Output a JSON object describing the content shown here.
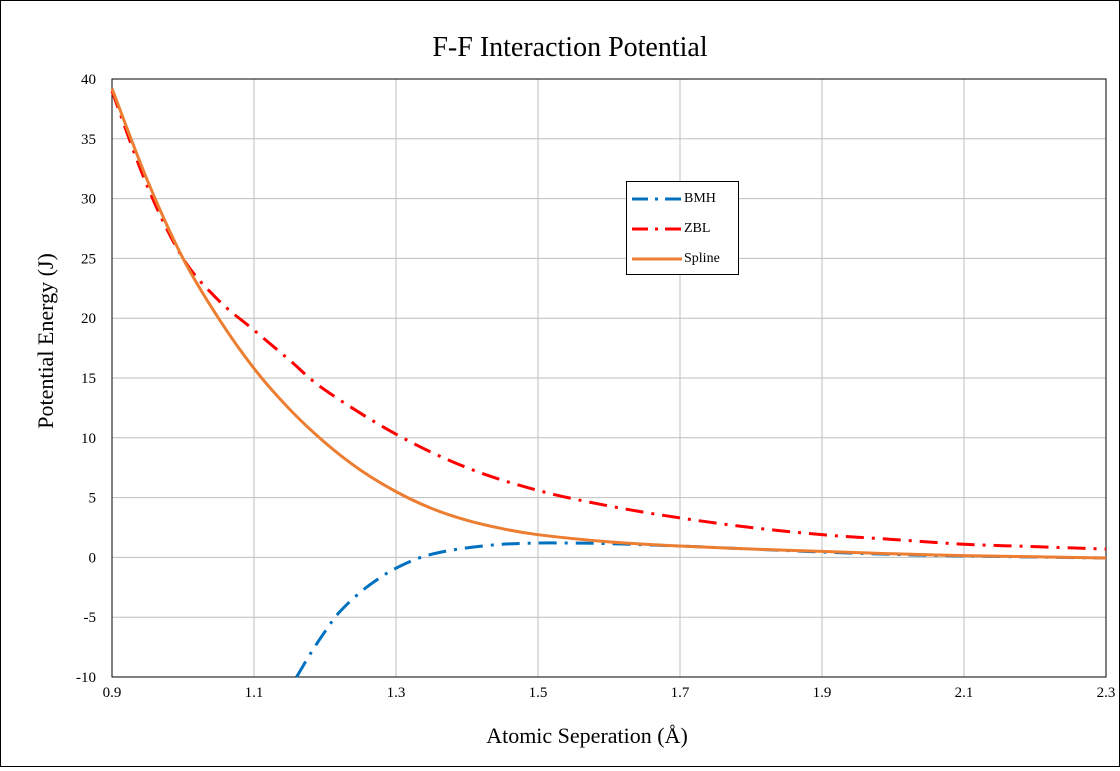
{
  "chart_data": {
    "type": "line",
    "title": "F-F Interaction Potential",
    "xlabel": "Atomic Seperation (Å)",
    "ylabel": "Potential Energy (J)",
    "xlim": [
      0.9,
      2.3
    ],
    "ylim": [
      -10,
      40
    ],
    "x_ticks": [
      "0.9",
      "1.1",
      "1.3",
      "1.5",
      "1.7",
      "1.9",
      "2.1",
      "2.3"
    ],
    "y_ticks": [
      "-10",
      "-5",
      "0",
      "5",
      "10",
      "15",
      "20",
      "25",
      "30",
      "35",
      "40"
    ],
    "grid": true,
    "legend_position": "top-center-right",
    "series": [
      {
        "name": "BMH",
        "color": "#0070C0",
        "dash": "dash-dot",
        "x": [
          1.16,
          1.18,
          1.2,
          1.22,
          1.25,
          1.28,
          1.3,
          1.33,
          1.36,
          1.4,
          1.45,
          1.5,
          1.55,
          1.6,
          1.7,
          1.8,
          1.9,
          2.0,
          2.1,
          2.2,
          2.3
        ],
        "y": [
          -10.0,
          -8.0,
          -6.2,
          -4.6,
          -2.9,
          -1.6,
          -0.9,
          -0.1,
          0.4,
          0.8,
          1.1,
          1.2,
          1.2,
          1.15,
          0.95,
          0.7,
          0.45,
          0.25,
          0.12,
          0.03,
          -0.05
        ]
      },
      {
        "name": "ZBL",
        "color": "#FF0000",
        "dash": "dash-dot",
        "x": [
          0.9,
          0.95,
          1.0,
          1.05,
          1.1,
          1.15,
          1.2,
          1.3,
          1.4,
          1.5,
          1.6,
          1.7,
          1.8,
          1.9,
          2.0,
          2.1,
          2.2,
          2.3
        ],
        "y": [
          39.0,
          31.0,
          25.0,
          21.5,
          19.0,
          16.5,
          14.0,
          10.3,
          7.5,
          5.6,
          4.3,
          3.3,
          2.5,
          1.9,
          1.5,
          1.1,
          0.9,
          0.7
        ]
      },
      {
        "name": "Spline",
        "color": "#ED7D31",
        "dash": "solid",
        "x": [
          0.9,
          0.95,
          1.0,
          1.05,
          1.1,
          1.15,
          1.2,
          1.25,
          1.3,
          1.35,
          1.4,
          1.45,
          1.5,
          1.6,
          1.7,
          1.8,
          1.9,
          2.0,
          2.1,
          2.2,
          2.3
        ],
        "y": [
          39.2,
          31.5,
          25.0,
          20.0,
          15.8,
          12.4,
          9.6,
          7.3,
          5.5,
          4.1,
          3.1,
          2.4,
          1.9,
          1.3,
          0.95,
          0.7,
          0.5,
          0.3,
          0.15,
          0.05,
          -0.05
        ]
      }
    ]
  }
}
